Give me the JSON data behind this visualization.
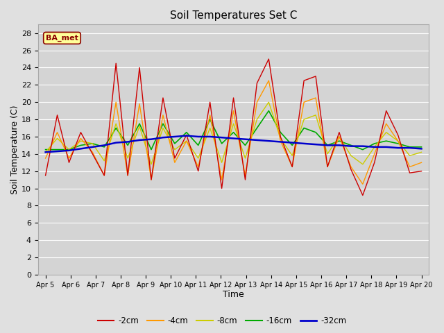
{
  "title": "Soil Temperatures Set C",
  "xlabel": "Time",
  "ylabel": "Soil Temperature (C)",
  "ylim": [
    0,
    29
  ],
  "yticks": [
    0,
    2,
    4,
    6,
    8,
    10,
    12,
    14,
    16,
    18,
    20,
    22,
    24,
    26,
    28
  ],
  "bg_color": "#e0e0e0",
  "plot_bg_color": "#d4d4d4",
  "grid_color": "#ffffff",
  "legend_label": "BA_met",
  "series_colors": {
    "-2cm": "#cc0000",
    "-4cm": "#ff9900",
    "-8cm": "#cccc00",
    "-16cm": "#00aa00",
    "-32cm": "#0000cc"
  },
  "dates": [
    "Apr 5",
    "Apr 6",
    "Apr 7",
    "Apr 8",
    "Apr 9",
    "Apr 10",
    "Apr 11",
    "Apr 12",
    "Apr 13",
    "Apr 14",
    "Apr 15",
    "Apr 16",
    "Apr 17",
    "Apr 18",
    "Apr 19",
    "Apr 20"
  ],
  "data_2cm": [
    11.5,
    18.5,
    13.0,
    16.5,
    14.0,
    11.5,
    24.5,
    11.5,
    24.0,
    11.0,
    20.5,
    13.5,
    16.2,
    12.0,
    20.0,
    10.0,
    20.5,
    11.0,
    22.2,
    25.0,
    16.0,
    12.5,
    22.5,
    23.0,
    12.5,
    16.5,
    12.2,
    9.2,
    13.0,
    19.0,
    16.2,
    11.8,
    12.0
  ],
  "data_4cm": [
    13.5,
    16.5,
    13.5,
    15.8,
    14.2,
    11.5,
    20.0,
    11.5,
    19.8,
    11.0,
    18.5,
    13.0,
    15.5,
    12.5,
    18.5,
    11.0,
    19.0,
    11.5,
    20.0,
    22.5,
    15.5,
    12.5,
    20.0,
    20.5,
    12.5,
    16.0,
    12.5,
    10.5,
    14.0,
    17.5,
    15.5,
    12.5,
    13.0
  ],
  "data_8cm": [
    14.2,
    15.8,
    14.5,
    15.5,
    15.2,
    13.2,
    17.5,
    13.5,
    17.2,
    12.8,
    17.0,
    14.5,
    15.5,
    13.5,
    17.0,
    13.0,
    17.5,
    13.5,
    18.0,
    20.0,
    15.8,
    13.8,
    18.0,
    18.5,
    14.0,
    16.0,
    13.8,
    12.8,
    14.8,
    16.5,
    15.5,
    13.8,
    14.2
  ],
  "data_16cm": [
    14.5,
    14.5,
    14.5,
    15.0,
    15.2,
    14.8,
    17.0,
    15.0,
    17.5,
    14.5,
    17.5,
    15.2,
    16.5,
    15.0,
    18.0,
    15.2,
    16.5,
    15.0,
    17.0,
    19.0,
    16.5,
    15.0,
    17.0,
    16.5,
    15.0,
    15.5,
    15.0,
    14.5,
    15.2,
    15.5,
    15.2,
    14.8,
    14.8
  ],
  "data_32cm": [
    14.2,
    14.3,
    14.4,
    14.6,
    14.8,
    15.0,
    15.3,
    15.4,
    15.6,
    15.7,
    15.9,
    16.0,
    16.1,
    16.0,
    16.0,
    15.9,
    15.8,
    15.7,
    15.6,
    15.5,
    15.4,
    15.3,
    15.2,
    15.1,
    15.0,
    15.0,
    14.9,
    14.9,
    14.8,
    14.8,
    14.7,
    14.7,
    14.6
  ]
}
